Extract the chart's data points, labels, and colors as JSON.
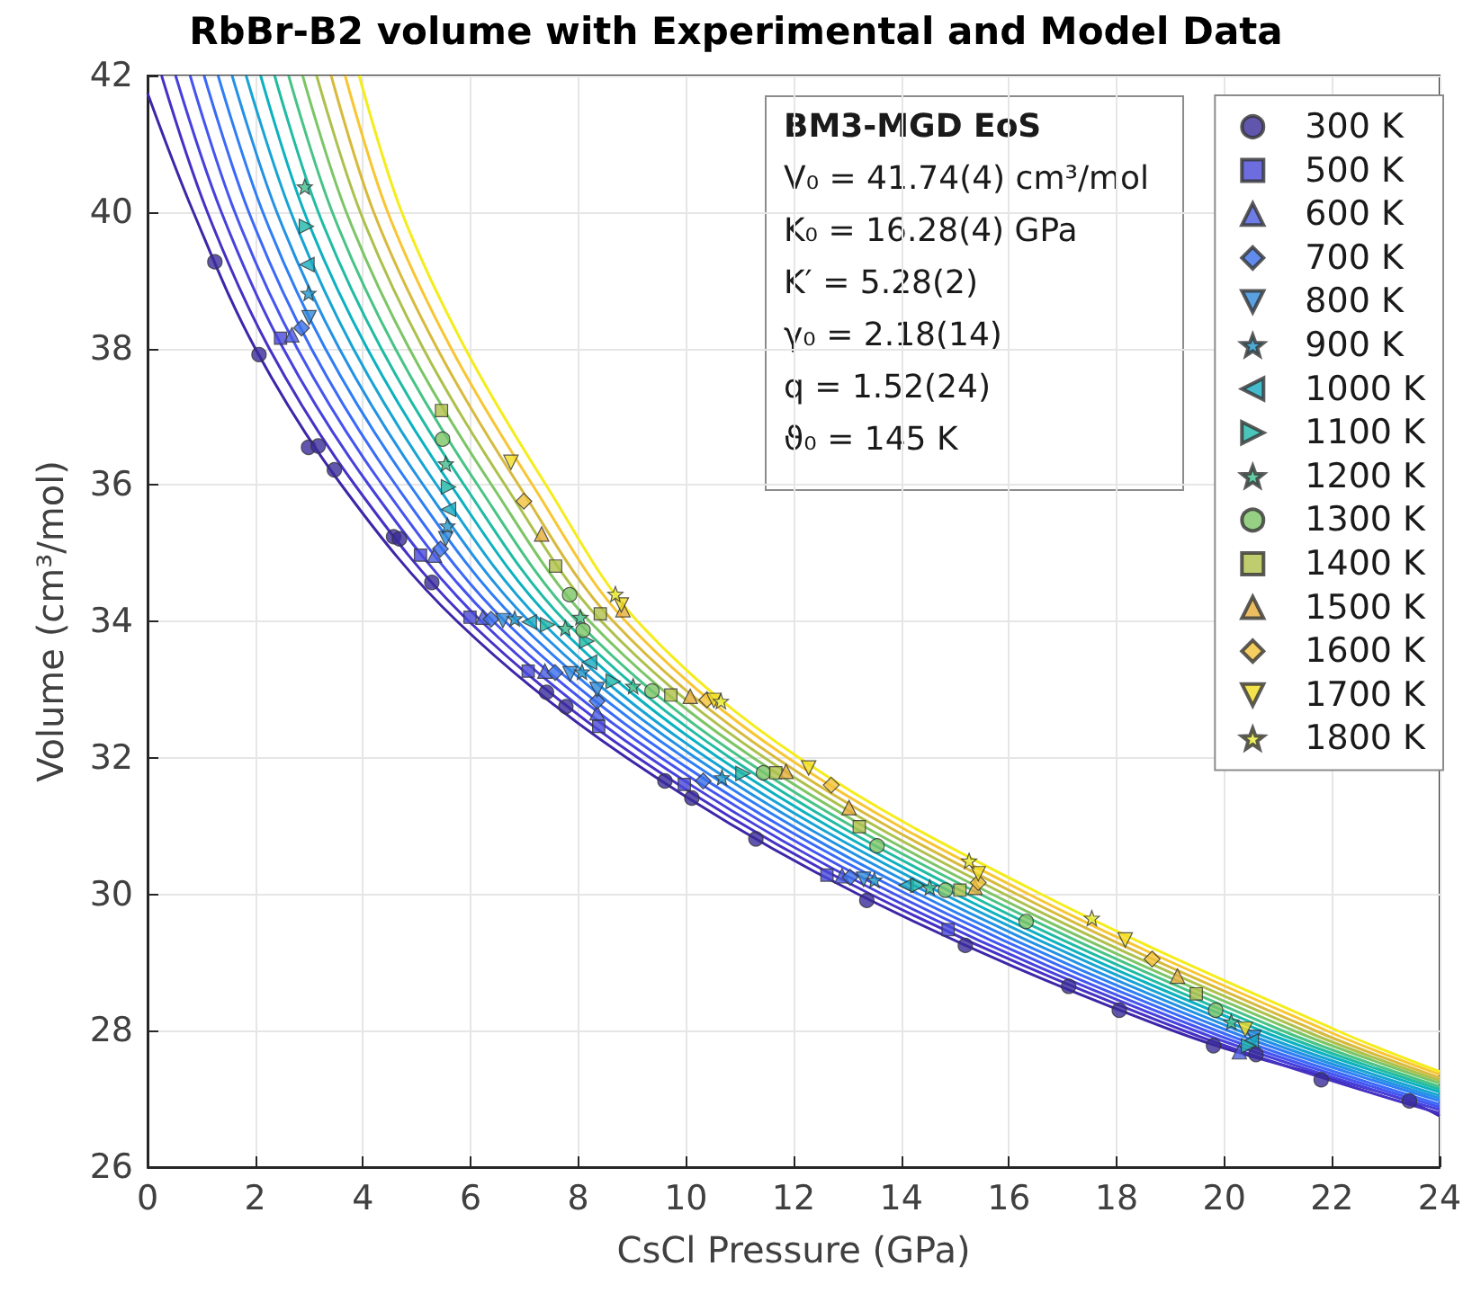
{
  "chart_data": {
    "type": "scatter",
    "title": "RbBr-B2 volume with Experimental and Model Data",
    "xlabel": "CsCl Pressure (GPa)",
    "ylabel": "Volume (cm³/mol)",
    "xlim": [
      0,
      24
    ],
    "xticks": [
      0,
      2,
      4,
      6,
      8,
      10,
      12,
      14,
      16,
      18,
      20,
      22,
      24
    ],
    "ylim": [
      26,
      42
    ],
    "yticks": [
      26,
      28,
      30,
      32,
      34,
      36,
      38,
      40,
      42
    ],
    "grid": true,
    "legend": "top right",
    "annotations": [
      "BM3-MGD EoS",
      "V₀ = 41.74(4) cm³/mol",
      "K₀ = 16.28(4) GPa",
      "K′ = 5.28(2)",
      "γ₀ = 2.18(14)",
      "q = 1.52(24)",
      "ϑ₀ = 145 K"
    ],
    "series": [
      {
        "type": "line",
        "color": "#3e26a8",
        "x": [
          0,
          0.85,
          2.0,
          3.6,
          5.75,
          8.9,
          13.2,
          19.05,
          23.3,
          24
        ],
        "values": [
          41.74,
          40,
          38,
          36,
          34,
          32,
          30,
          28,
          27,
          26.75
        ]
      },
      {
        "type": "line",
        "color": "#4531c4",
        "x": [
          0.26,
          1.11,
          2.26,
          3.85,
          5.97,
          9.11,
          13.43,
          19.25,
          24
        ],
        "values": [
          42,
          40,
          38,
          36,
          34,
          32,
          30,
          28,
          26.79
        ]
      },
      {
        "type": "line",
        "color": "#4741dc",
        "x": [
          0.52,
          1.37,
          2.52,
          4.11,
          6.2,
          9.33,
          13.65,
          19.46,
          24
        ],
        "values": [
          42,
          40,
          38,
          36,
          34,
          32,
          30,
          28,
          26.84
        ]
      },
      {
        "type": "line",
        "color": "#4554ef",
        "x": [
          0.79,
          1.62,
          2.78,
          4.36,
          6.42,
          9.54,
          13.88,
          19.66,
          24
        ],
        "values": [
          42,
          40,
          38,
          36,
          34,
          32,
          30,
          28,
          26.88
        ]
      },
      {
        "type": "line",
        "color": "#3b69f8",
        "x": [
          1.05,
          1.88,
          3.04,
          4.61,
          6.64,
          9.75,
          14.11,
          19.86,
          24
        ],
        "values": [
          42,
          40,
          38,
          36,
          34,
          32,
          30,
          28,
          26.92
        ]
      },
      {
        "type": "line",
        "color": "#2e7ef5",
        "x": [
          1.31,
          2.14,
          3.3,
          4.87,
          6.87,
          9.97,
          14.33,
          20.07,
          24
        ],
        "values": [
          42,
          40,
          38,
          36,
          34,
          32,
          30,
          28,
          26.97
        ]
      },
      {
        "type": "line",
        "color": "#2392e4",
        "x": [
          1.57,
          2.4,
          3.56,
          5.12,
          7.09,
          10.18,
          14.56,
          20.27,
          24
        ],
        "values": [
          42,
          40,
          38,
          36,
          34,
          32,
          30,
          28,
          27.01
        ]
      },
      {
        "type": "line",
        "color": "#17a3d4",
        "x": [
          1.83,
          2.66,
          3.82,
          5.37,
          7.31,
          10.39,
          14.79,
          20.47,
          24
        ],
        "values": [
          42,
          40,
          38,
          36,
          34,
          32,
          30,
          28,
          27.05
        ]
      },
      {
        "type": "line",
        "color": "#0cb1c0",
        "x": [
          2.1,
          2.91,
          4.08,
          5.63,
          7.54,
          10.61,
          15.01,
          20.68,
          24
        ],
        "values": [
          42,
          40,
          38,
          36,
          34,
          32,
          30,
          28,
          27.1
        ]
      },
      {
        "type": "line",
        "color": "#20bba4",
        "x": [
          2.36,
          3.17,
          4.34,
          5.88,
          7.76,
          10.82,
          15.24,
          20.88,
          24
        ],
        "values": [
          42,
          40,
          38,
          36,
          34,
          32,
          30,
          28,
          27.14
        ]
      },
      {
        "type": "line",
        "color": "#48c386",
        "x": [
          2.62,
          3.43,
          4.6,
          6.13,
          7.98,
          11.03,
          15.47,
          21.08,
          24
        ],
        "values": [
          42,
          40,
          38,
          36,
          34,
          32,
          30,
          28,
          27.18
        ]
      },
      {
        "type": "line",
        "color": "#7cc566",
        "x": [
          2.88,
          3.69,
          4.86,
          6.39,
          8.21,
          11.25,
          15.69,
          21.29,
          24
        ],
        "values": [
          42,
          40,
          38,
          36,
          34,
          32,
          30,
          28,
          27.23
        ]
      },
      {
        "type": "line",
        "color": "#acc04c",
        "x": [
          3.14,
          3.95,
          5.12,
          6.64,
          8.43,
          11.46,
          15.92,
          21.49,
          24
        ],
        "values": [
          42,
          40,
          38,
          36,
          34,
          32,
          30,
          28,
          27.27
        ]
      },
      {
        "type": "line",
        "color": "#d7ba3d",
        "x": [
          3.41,
          4.2,
          5.38,
          6.89,
          8.65,
          11.67,
          16.15,
          21.69,
          24
        ],
        "values": [
          42,
          40,
          38,
          36,
          34,
          32,
          30,
          28,
          27.31
        ]
      },
      {
        "type": "line",
        "color": "#f8c634",
        "x": [
          3.67,
          4.46,
          5.64,
          7.15,
          8.88,
          11.89,
          16.37,
          21.9,
          24
        ],
        "values": [
          42,
          40,
          38,
          36,
          34,
          32,
          30,
          28,
          27.36
        ]
      },
      {
        "type": "line",
        "color": "#f5ec1c",
        "x": [
          3.93,
          4.72,
          5.9,
          7.4,
          9.1,
          12.1,
          16.6,
          22.1,
          24
        ],
        "values": [
          42,
          40,
          38,
          36,
          34,
          32,
          30,
          28,
          27.4
        ]
      },
      {
        "name": "300 K",
        "color": "#3a2c99",
        "marker": "circle",
        "x": [
          1.25,
          2.07,
          2.99,
          3.17,
          3.47,
          4.57,
          4.68,
          5.28,
          7.41,
          7.77,
          9.61,
          10.11,
          11.3,
          13.36,
          15.19,
          17.11,
          18.05,
          19.8,
          20.59,
          21.8,
          23.44
        ],
        "values": [
          39.27,
          37.91,
          36.55,
          36.57,
          36.22,
          35.24,
          35.21,
          34.57,
          32.96,
          32.75,
          31.66,
          31.41,
          30.81,
          29.91,
          29.25,
          28.65,
          28.3,
          27.78,
          27.65,
          27.28,
          26.97
        ]
      },
      {
        "name": "500 K",
        "color": "#4848d8",
        "marker": "square",
        "x": [
          2.47,
          5.07,
          5.99,
          7.07,
          8.38,
          9.97,
          12.62,
          14.87
        ],
        "values": [
          38.15,
          34.97,
          34.06,
          33.27,
          32.46,
          31.61,
          30.28,
          29.48
        ]
      },
      {
        "name": "600 K",
        "color": "#4a5be0",
        "marker": "triangle",
        "x": [
          2.68,
          5.33,
          6.23,
          7.38,
          8.35,
          12.9,
          20.28
        ],
        "values": [
          38.2,
          34.97,
          34.06,
          33.27,
          32.66,
          30.27,
          27.69
        ]
      },
      {
        "name": "700 K",
        "color": "#3a6fe8",
        "marker": "diamond",
        "x": [
          2.86,
          5.44,
          6.38,
          7.57,
          8.35,
          10.32,
          13.05
        ],
        "values": [
          38.3,
          35.06,
          34.03,
          33.25,
          32.83,
          31.66,
          30.25
        ]
      },
      {
        "name": "800 K",
        "color": "#2f8ad9",
        "marker": "triangle-down",
        "x": [
          3.0,
          5.54,
          6.6,
          7.85,
          8.35,
          13.3,
          20.55
        ],
        "values": [
          38.45,
          35.21,
          34.01,
          33.23,
          33.0,
          30.22,
          27.9
        ]
      },
      {
        "name": "900 K",
        "color": "#2196c8",
        "marker": "star",
        "x": [
          2.99,
          5.57,
          6.82,
          8.07,
          10.67,
          13.5
        ],
        "values": [
          38.81,
          35.4,
          34.04,
          33.26,
          31.71,
          30.21
        ]
      },
      {
        "name": "1000 K",
        "color": "#17abc0",
        "marker": "triangle-left",
        "x": [
          2.96,
          5.59,
          7.09,
          8.21,
          14.09,
          20.5
        ],
        "values": [
          39.23,
          35.64,
          33.99,
          33.4,
          30.13,
          27.85
        ]
      },
      {
        "name": "1100 K",
        "color": "#1db7a7",
        "marker": "triangle-right",
        "x": [
          2.95,
          5.59,
          7.43,
          8.16,
          8.65,
          11.06,
          14.31,
          20.45
        ],
        "values": [
          39.79,
          35.97,
          33.95,
          33.71,
          33.12,
          31.77,
          30.13,
          27.78
        ]
      },
      {
        "name": "1200 K",
        "color": "#40bd8c",
        "marker": "star",
        "x": [
          2.92,
          5.54,
          7.76,
          8.04,
          9.02,
          14.53,
          20.13
        ],
        "values": [
          40.37,
          36.31,
          33.9,
          34.06,
          33.05,
          30.1,
          28.13
        ]
      },
      {
        "name": "1300 K",
        "color": "#7cc466",
        "marker": "circle",
        "x": [
          5.48,
          7.84,
          8.09,
          9.37,
          11.44,
          13.55,
          14.82,
          16.32,
          19.84
        ],
        "values": [
          36.67,
          34.39,
          33.87,
          32.98,
          31.78,
          30.71,
          30.06,
          29.6,
          28.3
        ]
      },
      {
        "name": "1400 K",
        "color": "#b0c04a",
        "marker": "square",
        "x": [
          5.46,
          7.58,
          8.41,
          9.72,
          11.67,
          13.22,
          15.09,
          19.48
        ],
        "values": [
          37.09,
          34.81,
          34.11,
          32.92,
          31.78,
          30.99,
          30.06,
          28.54
        ]
      },
      {
        "name": "1500 K",
        "color": "#e6ad3c",
        "marker": "triangle",
        "x": [
          7.32,
          8.83,
          10.08,
          11.86,
          13.03,
          15.37,
          19.13
        ],
        "values": [
          35.28,
          34.17,
          32.9,
          31.8,
          31.27,
          30.1,
          28.8
        ]
      },
      {
        "name": "1600 K",
        "color": "#f2c23a",
        "marker": "diamond",
        "x": [
          6.99,
          10.39,
          12.7,
          15.43,
          18.66
        ],
        "values": [
          35.76,
          32.85,
          31.6,
          30.17,
          29.05
        ]
      },
      {
        "name": "1700 K",
        "color": "#f3dc22",
        "marker": "triangle-down",
        "x": [
          6.75,
          8.8,
          10.52,
          12.28,
          15.43,
          18.16,
          20.39
        ],
        "values": [
          36.33,
          34.24,
          32.84,
          31.85,
          30.3,
          29.33,
          28.02
        ]
      },
      {
        "name": "1800 K",
        "color": "#e6e83c",
        "marker": "star",
        "x": [
          8.69,
          10.65,
          15.26,
          17.54
        ],
        "values": [
          34.4,
          32.83,
          30.49,
          29.65
        ]
      }
    ]
  }
}
